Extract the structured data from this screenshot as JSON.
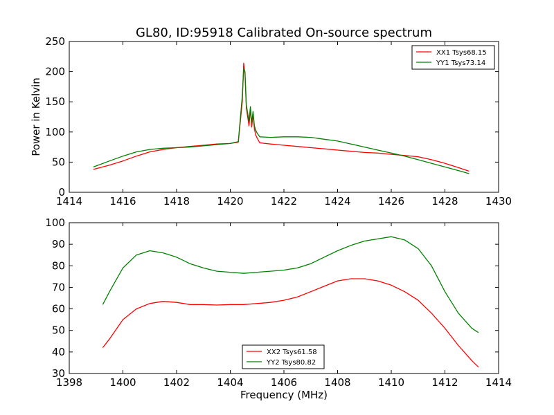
{
  "figure": {
    "title": "GL80, ID:95918 Calibrated On-source spectrum"
  },
  "chart_data": [
    {
      "type": "line",
      "title": "GL80, ID:95918 Calibrated On-source spectrum",
      "xlabel": "",
      "ylabel": "Power in Kelvin",
      "xlim": [
        1414,
        1430
      ],
      "ylim": [
        0,
        250
      ],
      "xticks": [
        "1414",
        "1416",
        "1418",
        "1420",
        "1422",
        "1424",
        "1426",
        "1428",
        "1430"
      ],
      "yticks": [
        "0",
        "50",
        "100",
        "150",
        "200",
        "250"
      ],
      "grid": false,
      "legend": "top-right",
      "series": [
        {
          "name": "XX1 Tsys68.15",
          "color": "#ff0000",
          "x": [
            1414.9,
            1415.5,
            1416,
            1416.5,
            1417,
            1417.5,
            1418,
            1418.5,
            1419,
            1419.5,
            1420,
            1420.3,
            1420.45,
            1420.5,
            1420.55,
            1420.6,
            1420.7,
            1420.75,
            1420.8,
            1420.85,
            1420.9,
            1420.95,
            1421,
            1421.1,
            1421.5,
            1422,
            1422.5,
            1423,
            1423.5,
            1424,
            1424.5,
            1425,
            1425.5,
            1426,
            1426.5,
            1427,
            1427.5,
            1428,
            1428.5,
            1428.9
          ],
          "y": [
            38,
            45,
            52,
            60,
            67,
            71,
            74,
            76,
            78,
            80,
            81,
            83,
            150,
            214,
            195,
            140,
            110,
            138,
            108,
            130,
            105,
            95,
            90,
            82,
            80,
            78,
            76,
            74,
            72,
            70,
            68,
            66,
            65,
            63,
            61,
            59,
            54,
            48,
            41,
            35
          ]
        },
        {
          "name": "YY1 Tsys73.14",
          "color": "#008000",
          "x": [
            1414.9,
            1415.5,
            1416,
            1416.5,
            1417,
            1417.5,
            1418,
            1418.5,
            1419,
            1419.5,
            1420,
            1420.3,
            1420.45,
            1420.5,
            1420.55,
            1420.6,
            1420.7,
            1420.75,
            1420.8,
            1420.85,
            1420.9,
            1420.95,
            1421,
            1421.1,
            1421.5,
            1422,
            1422.5,
            1423,
            1423.5,
            1424,
            1424.5,
            1425,
            1425.5,
            1426,
            1426.5,
            1427,
            1427.5,
            1428,
            1428.5,
            1428.9
          ],
          "y": [
            42,
            52,
            60,
            67,
            71,
            73,
            74,
            75,
            77,
            79,
            81,
            84,
            160,
            205,
            200,
            145,
            118,
            142,
            115,
            134,
            110,
            103,
            98,
            92,
            91,
            92,
            92,
            91,
            88,
            85,
            80,
            75,
            70,
            65,
            60,
            54,
            48,
            42,
            36,
            31
          ]
        }
      ]
    },
    {
      "type": "line",
      "title": "",
      "xlabel": "Frequency (MHz)",
      "ylabel": "",
      "xlim": [
        1398,
        1414
      ],
      "ylim": [
        30,
        100
      ],
      "xticks": [
        "1398",
        "1400",
        "1402",
        "1404",
        "1406",
        "1408",
        "1410",
        "1412",
        "1414"
      ],
      "yticks": [
        "30",
        "40",
        "50",
        "60",
        "70",
        "80",
        "90",
        "100"
      ],
      "grid": false,
      "legend": "bottom-center",
      "series": [
        {
          "name": "XX2 Tsys61.58",
          "color": "#ff0000",
          "x": [
            1399.25,
            1399.5,
            1400,
            1400.5,
            1401,
            1401.5,
            1402,
            1402.5,
            1403,
            1403.5,
            1404,
            1404.5,
            1405,
            1405.5,
            1406,
            1406.5,
            1407,
            1407.5,
            1408,
            1408.5,
            1409,
            1409.5,
            1410,
            1410.5,
            1411,
            1411.5,
            1412,
            1412.5,
            1413,
            1413.25
          ],
          "y": [
            42,
            46,
            55,
            60,
            62.5,
            63.5,
            63,
            62,
            62,
            61.8,
            62,
            62,
            62.5,
            63,
            64,
            65.5,
            68,
            70.5,
            73,
            74,
            74,
            73,
            71,
            68,
            64,
            58,
            51,
            43,
            36,
            33
          ]
        },
        {
          "name": "YY2 Tsys80.82",
          "color": "#008000",
          "x": [
            1399.25,
            1399.5,
            1400,
            1400.5,
            1401,
            1401.5,
            1402,
            1402.5,
            1403,
            1403.5,
            1404,
            1404.5,
            1405,
            1405.5,
            1406,
            1406.5,
            1407,
            1407.5,
            1408,
            1408.5,
            1409,
            1409.5,
            1410,
            1410.5,
            1411,
            1411.5,
            1412,
            1412.5,
            1413,
            1413.25
          ],
          "y": [
            62,
            68,
            79,
            85,
            87,
            86,
            84,
            81,
            79,
            77.5,
            77,
            76.5,
            77,
            77.5,
            78,
            79,
            81,
            84,
            87,
            89.5,
            91.5,
            92.5,
            93.5,
            92,
            88,
            80,
            68,
            58,
            51,
            49
          ]
        }
      ]
    }
  ]
}
